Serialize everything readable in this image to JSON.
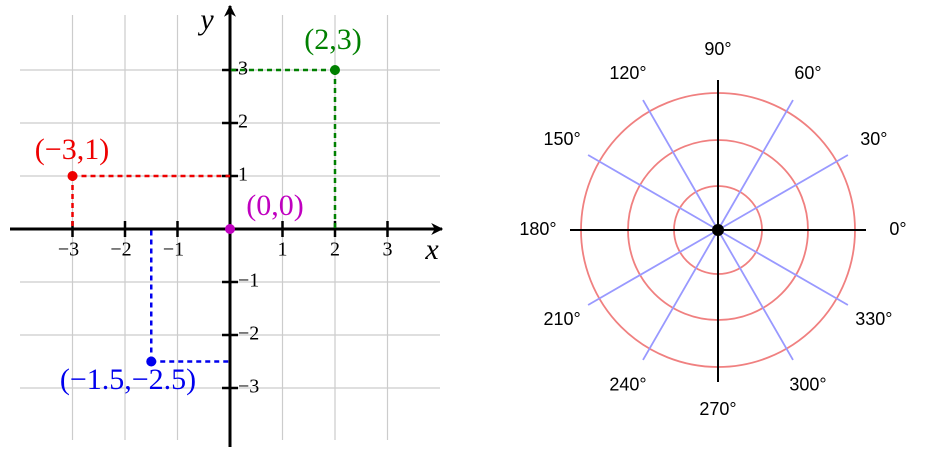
{
  "cartesian": {
    "x_label": "x",
    "y_label": "y",
    "x_ticks": [
      {
        "value": -3,
        "label": "−3"
      },
      {
        "value": -2,
        "label": "−2"
      },
      {
        "value": -1,
        "label": "−1"
      },
      {
        "value": 1,
        "label": "1"
      },
      {
        "value": 2,
        "label": "2"
      },
      {
        "value": 3,
        "label": "3"
      }
    ],
    "y_ticks": [
      {
        "value": -3,
        "label": "−3"
      },
      {
        "value": -2,
        "label": "−2"
      },
      {
        "value": -1,
        "label": "−1"
      },
      {
        "value": 1,
        "label": "1"
      },
      {
        "value": 2,
        "label": "2"
      },
      {
        "value": 3,
        "label": "3"
      }
    ],
    "points": [
      {
        "label": "(2,3)",
        "x": 2,
        "y": 3,
        "color": "#008000"
      },
      {
        "label": "(−3,1)",
        "x": -3,
        "y": 1,
        "color": "#ee0000"
      },
      {
        "label": "(0,0)",
        "x": 0,
        "y": 0,
        "color": "#c000c0"
      },
      {
        "label": "(−1.5,−2.5)",
        "x": -1.5,
        "y": -2.5,
        "color": "#0000ee"
      }
    ]
  },
  "polar": {
    "angle_labels": [
      "0°",
      "30°",
      "60°",
      "90°",
      "120°",
      "150°",
      "180°",
      "210°",
      "240°",
      "270°",
      "300°",
      "330°"
    ]
  }
}
